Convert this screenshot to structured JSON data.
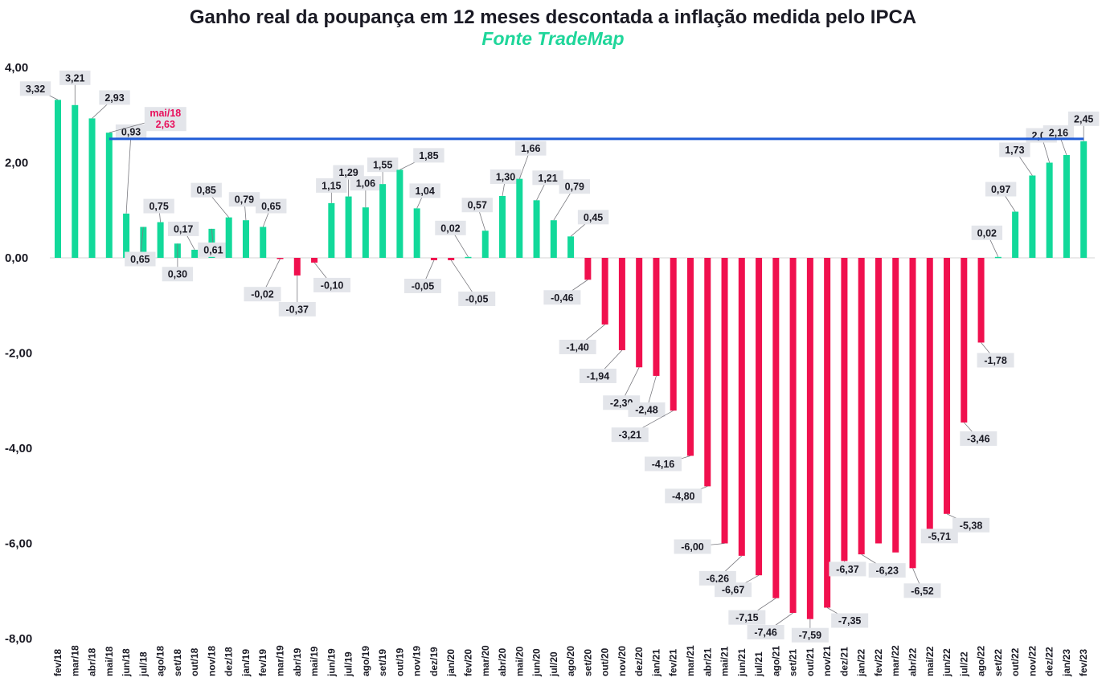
{
  "chart_data": {
    "type": "bar",
    "title": "Ganho real da poupança em 12 meses descontada a inflação medida pelo IPCA",
    "subtitle": "Fonte TradeMap",
    "xlabel": "",
    "ylabel": "",
    "ylim": [
      -8,
      4
    ],
    "yticks": [
      "4,00",
      "2,00",
      "0,00",
      "-2,00",
      "-4,00",
      "-6,00",
      "-8,00"
    ],
    "yticks_values": [
      4,
      2,
      0,
      -2,
      -4,
      -6,
      -8
    ],
    "positive_color": "#12d99a",
    "negative_color": "#f0104e",
    "reference_line_color": "#1f5bd6",
    "highlight_color": "#e8105c",
    "categories": [
      "fev/18",
      "mar/18",
      "abr/18",
      "mai/18",
      "jun/18",
      "jul/18",
      "ago/18",
      "set/18",
      "out/18",
      "nov/18",
      "dez/18",
      "jan/19",
      "fev/19",
      "mar/19",
      "abr/19",
      "mai/19",
      "jun/19",
      "jul/19",
      "ago/19",
      "set/19",
      "out/19",
      "nov/19",
      "dez/19",
      "jan/20",
      "fev/20",
      "mar/20",
      "abr/20",
      "mai/20",
      "jun/20",
      "jul/20",
      "ago/20",
      "set/20",
      "out/20",
      "nov/20",
      "dez/20",
      "jan/21",
      "fev/21",
      "mar/21",
      "abr/21",
      "mai/21",
      "jun/21",
      "jul/21",
      "ago/21",
      "set/21",
      "out/21",
      "nov/21",
      "dez/21",
      "jan/22",
      "fev/22",
      "mar/22",
      "abr/22",
      "mai/22",
      "jun/22",
      "jul/22",
      "ago/22",
      "set/22",
      "out/22",
      "nov/22",
      "dez/22",
      "jan/23",
      "fev/23"
    ],
    "values": [
      3.32,
      3.21,
      2.93,
      2.63,
      0.93,
      0.65,
      0.75,
      0.3,
      0.17,
      0.61,
      0.85,
      0.79,
      0.65,
      -0.02,
      -0.37,
      -0.1,
      1.15,
      1.29,
      1.06,
      1.55,
      1.85,
      1.04,
      -0.05,
      -0.05,
      0.02,
      0.57,
      1.3,
      1.66,
      1.21,
      0.79,
      0.45,
      -0.46,
      -1.4,
      -1.94,
      -2.3,
      -2.48,
      -3.21,
      -4.16,
      -4.8,
      -6.0,
      -6.26,
      -6.67,
      -7.15,
      -7.46,
      -7.59,
      -7.35,
      -6.37,
      -6.23,
      -6.0,
      -6.19,
      -6.52,
      -5.71,
      -5.38,
      -3.46,
      -1.78,
      0.02,
      0.97,
      1.73,
      2.0,
      2.16,
      2.45
    ],
    "labels": [
      "3,32",
      "3,21",
      "2,93",
      "2,63",
      "0,93",
      "0,65",
      "0,75",
      "0,30",
      "0,17",
      "0,61",
      "0,85",
      "0,79",
      "0,65",
      "-0,02",
      "-0,37",
      "-0,10",
      "1,15",
      "1,29",
      "1,06",
      "1,55",
      "1,85",
      "1,04",
      "-0,05",
      "-0,05",
      "0,02",
      "0,57",
      "1,30",
      "1,66",
      "1,21",
      "0,79",
      "0,45",
      "-0,46",
      "-1,40",
      "-1,94",
      "-2,30",
      "-2,48",
      "-3,21",
      "-4,16",
      "-4,80",
      "-6,00",
      "-6,26",
      "-6,67",
      "-7,15",
      "-7,46",
      "-7,59",
      "-7,35",
      "-6,37",
      "-6,23",
      null,
      null,
      "-6,52",
      "-5,71",
      "-5,38",
      "-3,46",
      "-1,78",
      "0,02",
      "0,97",
      "1,73",
      "2,00",
      "2,16",
      "2,45"
    ],
    "highlight": {
      "category": "mai/18",
      "label": "mai/18",
      "value_label": "2,63"
    },
    "reference_line": {
      "value": 2.5,
      "from": "mai/18",
      "to": "fev/23"
    }
  }
}
